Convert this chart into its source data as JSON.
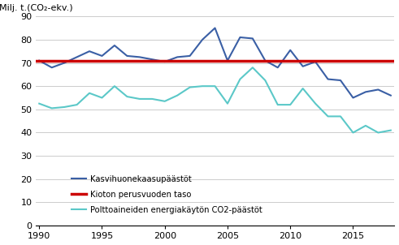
{
  "ylabel": "Milj. t.(CO₂-ekv.)",
  "years": [
    1990,
    1991,
    1992,
    1993,
    1994,
    1995,
    1996,
    1997,
    1998,
    1999,
    2000,
    2001,
    2002,
    2003,
    2004,
    2005,
    2006,
    2007,
    2008,
    2009,
    2010,
    2011,
    2012,
    2013,
    2014,
    2015,
    2016,
    2017,
    2018
  ],
  "ghg": [
    71.0,
    68.0,
    70.0,
    72.5,
    75.0,
    73.0,
    77.5,
    73.0,
    72.5,
    71.5,
    70.5,
    72.5,
    73.0,
    80.0,
    85.0,
    71.0,
    81.0,
    80.5,
    71.0,
    68.0,
    75.5,
    68.5,
    70.5,
    63.0,
    62.5,
    55.0,
    57.5,
    58.5,
    56.0
  ],
  "kyoto_level": 71.0,
  "co2": [
    52.5,
    50.5,
    51.0,
    52.0,
    57.0,
    55.0,
    60.0,
    55.5,
    54.5,
    54.5,
    53.5,
    56.0,
    59.5,
    60.0,
    60.0,
    52.5,
    63.0,
    68.0,
    62.5,
    52.0,
    52.0,
    59.0,
    52.5,
    47.0,
    47.0,
    40.0,
    43.0,
    40.0,
    41.0
  ],
  "ghg_color": "#3a5fa5",
  "kyoto_color": "#cc0000",
  "co2_color": "#5bc8c8",
  "legend_labels": [
    "Kasvihuonekaasupäästöt",
    "Kioton perusvuoden taso",
    "Polttoaineiden energiakäytön CO2-päästöt"
  ],
  "ylim": [
    0,
    90
  ],
  "yticks": [
    0,
    10,
    20,
    30,
    40,
    50,
    60,
    70,
    80,
    90
  ],
  "xlim": [
    1990,
    2018
  ],
  "xticks": [
    1990,
    1995,
    2000,
    2005,
    2010,
    2015
  ],
  "bg_color": "#ffffff",
  "grid_color": "#cccccc"
}
